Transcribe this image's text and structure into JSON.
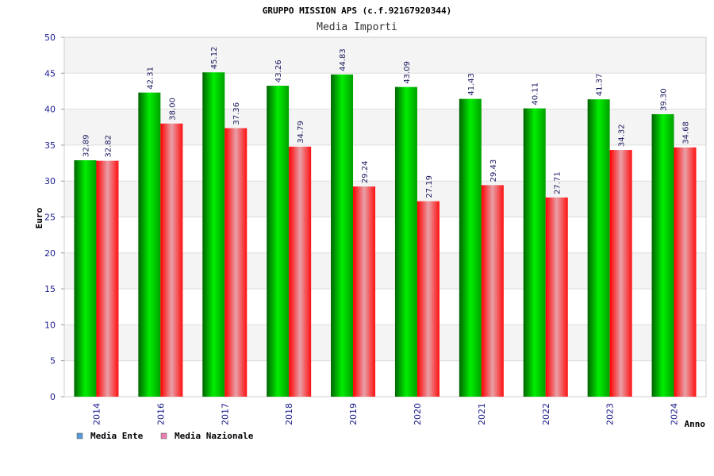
{
  "chart_data": {
    "type": "bar",
    "title": "GRUPPO MISSION APS (c.f.92167920344)",
    "subtitle": "Media Importi",
    "xlabel": "Anno",
    "ylabel": "Euro",
    "ylim": [
      0,
      50
    ],
    "yticks": [
      "0",
      "5",
      "10",
      "15",
      "20",
      "25",
      "30",
      "35",
      "40",
      "45",
      "50"
    ],
    "grid": true,
    "legend_position": "bottom-left",
    "categories": [
      "2014",
      "2016",
      "2017",
      "2018",
      "2019",
      "2020",
      "2021",
      "2022",
      "2023",
      "2024"
    ],
    "series": [
      {
        "name": "Media Ente",
        "values": [
          32.89,
          42.31,
          45.12,
          43.26,
          44.83,
          43.09,
          41.43,
          40.11,
          41.37,
          39.3
        ],
        "labels": [
          "32.89",
          "42.31",
          "45.12",
          "43.26",
          "44.83",
          "43.09",
          "41.43",
          "40.11",
          "41.37",
          "39.30"
        ],
        "color": "#00cc00",
        "legend_color": "#5b9bd5"
      },
      {
        "name": "Media Nazionale",
        "values": [
          32.82,
          38.0,
          37.36,
          34.79,
          29.24,
          27.19,
          29.43,
          27.71,
          34.32,
          34.68
        ],
        "labels": [
          "32.82",
          "38.00",
          "37.36",
          "34.79",
          "29.24",
          "27.19",
          "29.43",
          "27.71",
          "34.32",
          "34.68"
        ],
        "color": "#ff0000",
        "legend_color": "#e67fb0"
      }
    ]
  }
}
